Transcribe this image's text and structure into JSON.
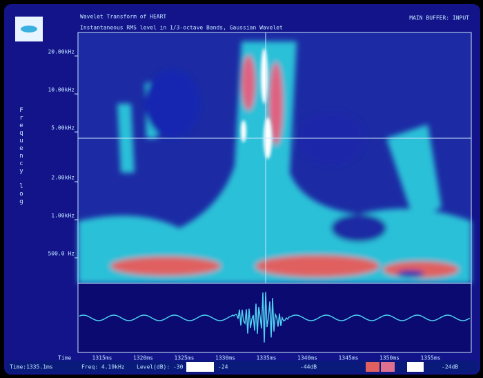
{
  "header": {
    "title": "Wavelet Transform of HEART",
    "subtitle": "Instantaneous RMS level in 1/3-octave Bands, Gaussian Wavelet",
    "buffer": "MAIN BUFFER: INPUT"
  },
  "y_axis": {
    "label": "Frequency log",
    "ticks": [
      "20.00kHz",
      "10.00kHz",
      "5.00kHz",
      "2.00kHz",
      "1.00kHz",
      "500.0 Hz"
    ]
  },
  "x_axis": {
    "label": "Time",
    "ticks": [
      "1315ms",
      "1320ms",
      "1325ms",
      "1330ms",
      "1335ms",
      "1340ms",
      "1345ms",
      "1350ms",
      "1355ms"
    ]
  },
  "status": {
    "time": "Time:1335.1ms",
    "freq": "Freq: 4.19kHz",
    "level": "Level(dB): -30",
    "level_mid": "-24",
    "level_low": "-44dB",
    "level_high": "-24dB"
  }
}
